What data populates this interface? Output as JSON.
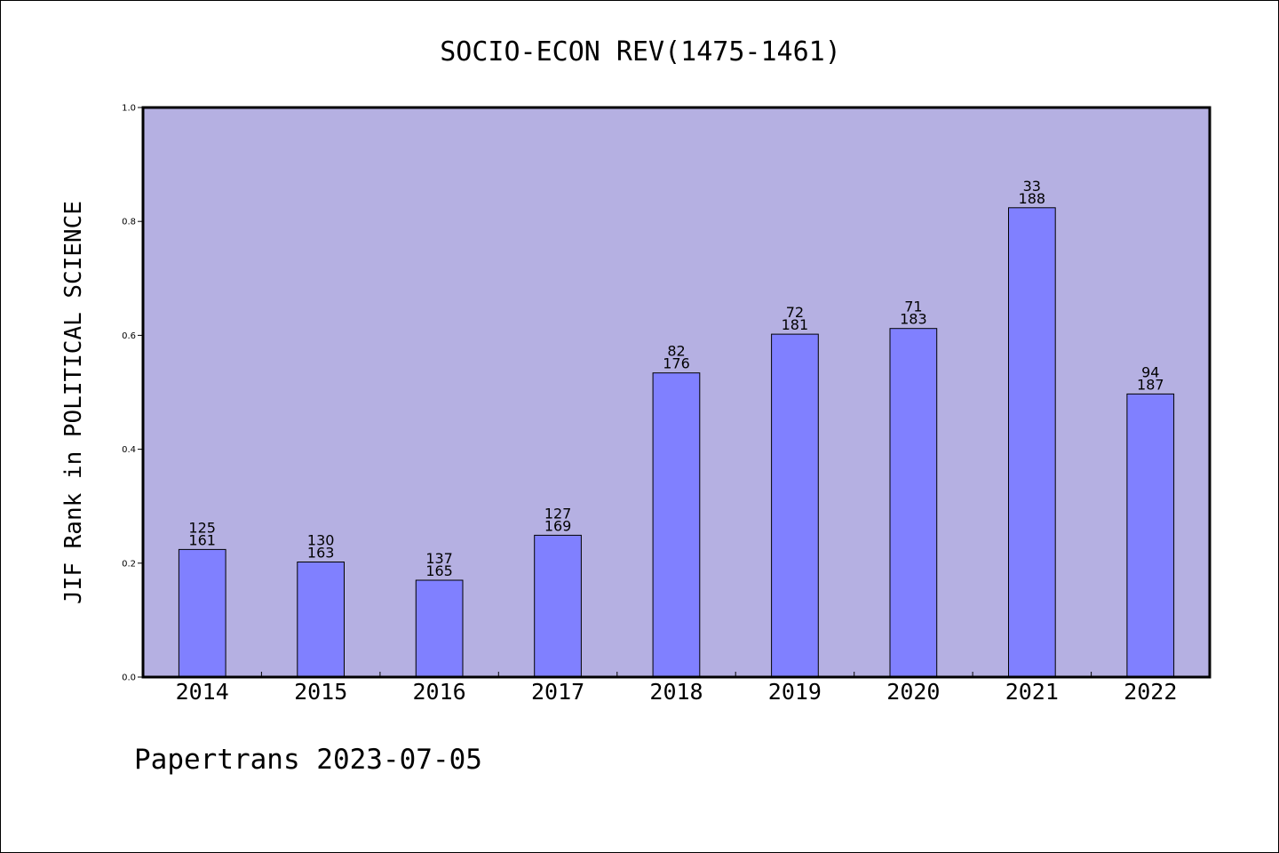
{
  "chart_data": {
    "type": "bar",
    "title": "SOCIO-ECON REV(1475-1461)",
    "ylabel": "JIF Rank in POLITICAL SCIENCE",
    "xlabel": "",
    "categories": [
      "2014",
      "2015",
      "2016",
      "2017",
      "2018",
      "2019",
      "2020",
      "2021",
      "2022"
    ],
    "values": [
      0.224,
      0.202,
      0.17,
      0.249,
      0.534,
      0.602,
      0.612,
      0.824,
      0.497
    ],
    "rank": [
      "125",
      "130",
      "137",
      "127",
      "82",
      "72",
      "71",
      "33",
      "94"
    ],
    "total": [
      "161",
      "163",
      "165",
      "169",
      "176",
      "181",
      "183",
      "188",
      "187"
    ],
    "ylim": [
      0,
      1.0
    ],
    "yticks": [
      "0.0",
      "0.2",
      "0.4",
      "0.6",
      "0.8",
      "1.0"
    ],
    "grid": false,
    "colors": {
      "plot_background": "#b5b0e2",
      "bar_fill": "#8080ff",
      "bar_edge": "#000000"
    }
  },
  "footer": "Papertrans 2023-07-05"
}
